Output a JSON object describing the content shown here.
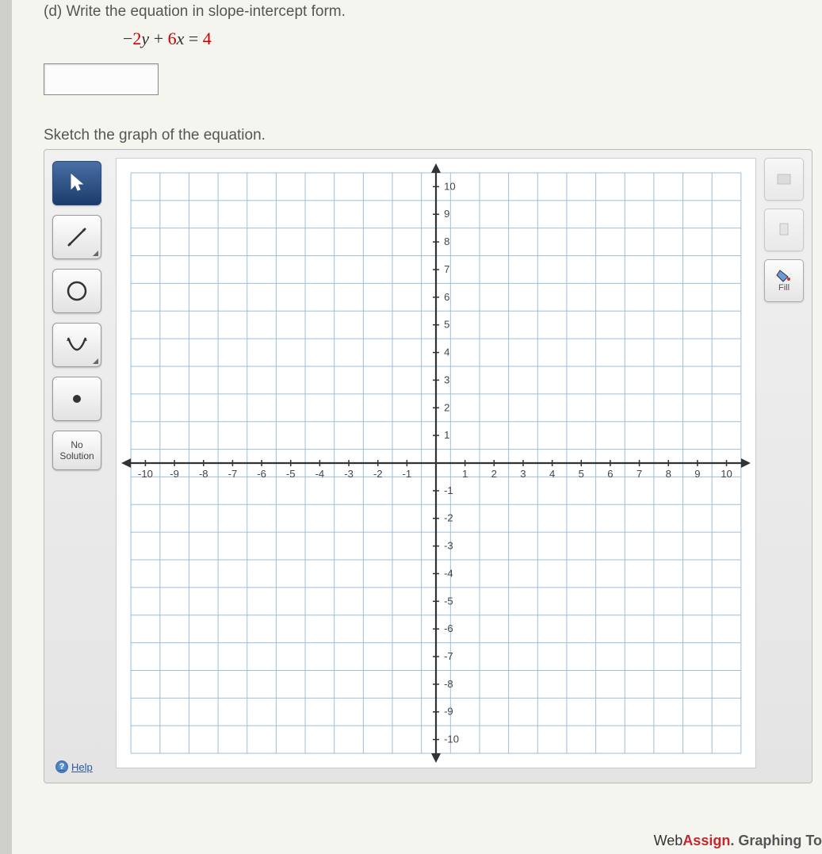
{
  "question": {
    "part_label": "(d)",
    "prompt": "Write the equation in slope-intercept form.",
    "equation_parts": {
      "neg": "−",
      "c1": "2",
      "var1": "y",
      "plus": " + ",
      "c2": "6",
      "var2": "x",
      "eq": " = ",
      "c3": "4"
    },
    "sketch_prompt": "Sketch the graph of the equation."
  },
  "toolbar": {
    "tools": [
      {
        "id": "pointer",
        "selected": true
      },
      {
        "id": "line",
        "selected": false
      },
      {
        "id": "circle",
        "selected": false
      },
      {
        "id": "parabola",
        "selected": false
      },
      {
        "id": "point",
        "selected": false
      }
    ],
    "no_solution_label": "No\nSolution"
  },
  "right_tools": {
    "fill_label": "Fill"
  },
  "graph": {
    "xmin": -10,
    "xmax": 10,
    "ymin": -10,
    "ymax": 10,
    "xtick_step": 1,
    "ytick_step": 1,
    "x_labels": [
      -10,
      -9,
      -8,
      -7,
      -6,
      -5,
      -4,
      -3,
      -2,
      -1,
      1,
      2,
      3,
      4,
      5,
      6,
      7,
      8,
      9,
      10
    ],
    "y_labels": [
      10,
      9,
      8,
      7,
      6,
      5,
      4,
      3,
      2,
      1,
      -1,
      -2,
      -3,
      -4,
      -5,
      -6,
      -7,
      -8,
      -9,
      -10
    ],
    "grid_color": "#9dbedb",
    "axis_color": "#333333",
    "background_color": "#ffffff"
  },
  "help_label": "Help",
  "brand": {
    "web": "Web",
    "assign": "Assign",
    "dot": ".",
    "rest": " Graphing To"
  }
}
